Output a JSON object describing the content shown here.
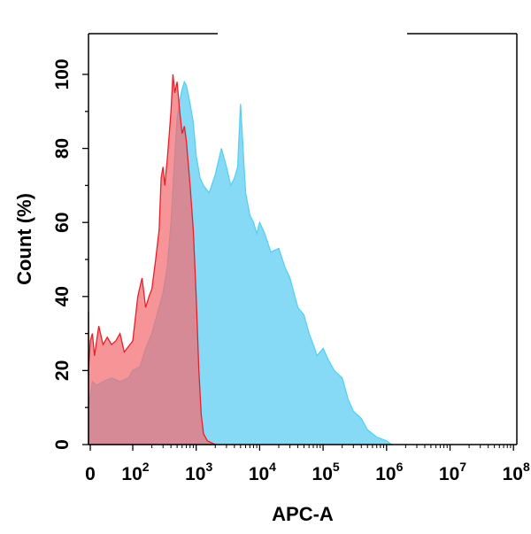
{
  "chart_data": {
    "type": "area",
    "xlabel": "APC-A",
    "ylabel": "Count  (%)",
    "xscale": "biexponential",
    "xlim": [
      -20,
      100000000
    ],
    "ylim": [
      0,
      100
    ],
    "yticks": [
      0,
      20,
      40,
      60,
      80,
      100
    ],
    "xticks": [
      {
        "value": 0,
        "base": "0",
        "exp": ""
      },
      {
        "value": 100,
        "base": "10",
        "exp": "2"
      },
      {
        "value": 1000,
        "base": "10",
        "exp": "3"
      },
      {
        "value": 10000,
        "base": "10",
        "exp": "4"
      },
      {
        "value": 100000,
        "base": "10",
        "exp": "5"
      },
      {
        "value": 1000000,
        "base": "10",
        "exp": "6"
      },
      {
        "value": 10000000,
        "base": "10",
        "exp": "7"
      },
      {
        "value": 100000000,
        "base": "10",
        "exp": "8"
      }
    ],
    "grid": false,
    "legend": "none",
    "series": [
      {
        "color": "#5ccfee",
        "fill": "#87daf5",
        "points": [
          [
            -25,
            25
          ],
          [
            -15,
            15
          ],
          [
            -5,
            10
          ],
          [
            5,
            17
          ],
          [
            15,
            16
          ],
          [
            30,
            17
          ],
          [
            50,
            18
          ],
          [
            70,
            17
          ],
          [
            90,
            18
          ],
          [
            100,
            20
          ],
          [
            130,
            21
          ],
          [
            160,
            26
          ],
          [
            200,
            30
          ],
          [
            250,
            36
          ],
          [
            300,
            41
          ],
          [
            350,
            48
          ],
          [
            400,
            60
          ],
          [
            450,
            75
          ],
          [
            500,
            88
          ],
          [
            550,
            93
          ],
          [
            600,
            96
          ],
          [
            650,
            98
          ],
          [
            700,
            97
          ],
          [
            800,
            92
          ],
          [
            900,
            87
          ],
          [
            1000,
            78
          ],
          [
            1150,
            72
          ],
          [
            1300,
            70
          ],
          [
            1600,
            68
          ],
          [
            2000,
            73
          ],
          [
            2500,
            80
          ],
          [
            3000,
            75
          ],
          [
            3500,
            70
          ],
          [
            4000,
            72
          ],
          [
            4500,
            75
          ],
          [
            5000,
            92
          ],
          [
            6000,
            68
          ],
          [
            7000,
            62
          ],
          [
            8000,
            60
          ],
          [
            9000,
            57
          ],
          [
            10000,
            60
          ],
          [
            12000,
            57
          ],
          [
            15000,
            52
          ],
          [
            20000,
            53
          ],
          [
            25000,
            48
          ],
          [
            30000,
            45
          ],
          [
            40000,
            37
          ],
          [
            50000,
            35
          ],
          [
            60000,
            30
          ],
          [
            70000,
            27
          ],
          [
            80000,
            24
          ],
          [
            100000,
            26
          ],
          [
            120000,
            23
          ],
          [
            150000,
            20
          ],
          [
            200000,
            18
          ],
          [
            250000,
            12
          ],
          [
            300000,
            9
          ],
          [
            400000,
            7
          ],
          [
            500000,
            4
          ],
          [
            700000,
            2
          ],
          [
            1000000,
            1
          ],
          [
            1200000,
            0
          ]
        ]
      },
      {
        "color": "#e8202a",
        "fill": "#f46b70",
        "points": [
          [
            -25,
            32
          ],
          [
            -15,
            36
          ],
          [
            -10,
            30
          ],
          [
            -5,
            20
          ],
          [
            0,
            28
          ],
          [
            5,
            30
          ],
          [
            10,
            24
          ],
          [
            20,
            32
          ],
          [
            30,
            27
          ],
          [
            40,
            29
          ],
          [
            50,
            27
          ],
          [
            60,
            28
          ],
          [
            70,
            30
          ],
          [
            80,
            25
          ],
          [
            100,
            28
          ],
          [
            120,
            40
          ],
          [
            140,
            45
          ],
          [
            160,
            37
          ],
          [
            180,
            40
          ],
          [
            200,
            42
          ],
          [
            230,
            50
          ],
          [
            260,
            58
          ],
          [
            280,
            72
          ],
          [
            300,
            75
          ],
          [
            320,
            70
          ],
          [
            350,
            77
          ],
          [
            380,
            85
          ],
          [
            400,
            90
          ],
          [
            430,
            100
          ],
          [
            460,
            95
          ],
          [
            500,
            98
          ],
          [
            550,
            90
          ],
          [
            600,
            84
          ],
          [
            650,
            86
          ],
          [
            700,
            82
          ],
          [
            800,
            70
          ],
          [
            900,
            58
          ],
          [
            1000,
            40
          ],
          [
            1100,
            20
          ],
          [
            1200,
            8
          ],
          [
            1300,
            3
          ],
          [
            1500,
            1
          ],
          [
            2000,
            0
          ]
        ]
      }
    ]
  }
}
